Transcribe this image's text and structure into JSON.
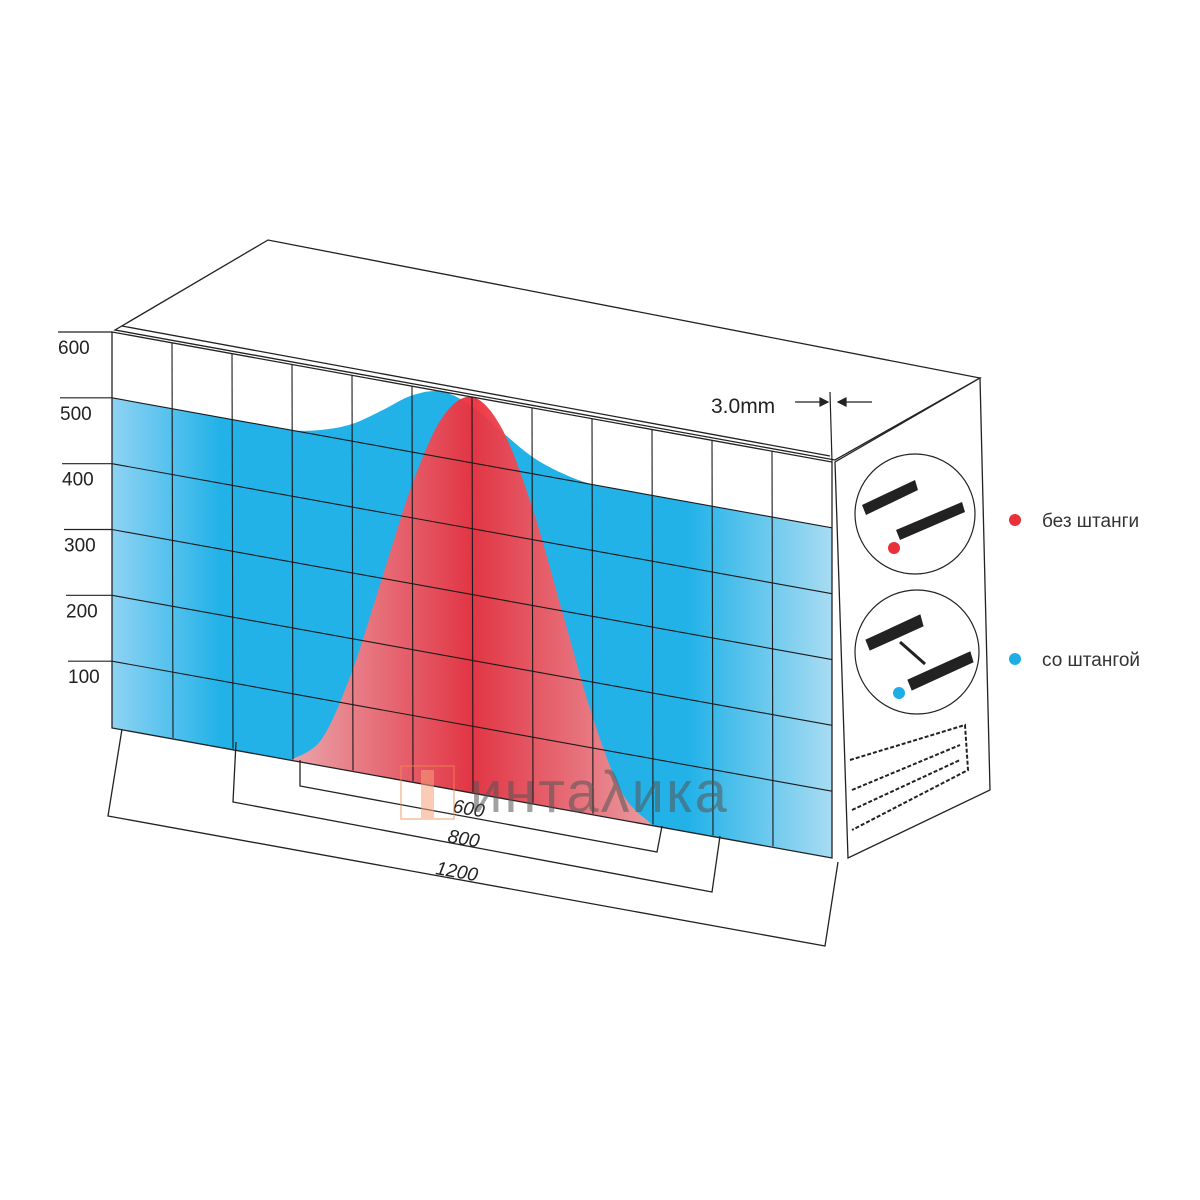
{
  "axis": {
    "levels": [
      "600",
      "500",
      "400",
      "300",
      "200",
      "100"
    ]
  },
  "dimensions": {
    "d600": "600",
    "d800": "800",
    "d1200": "1200",
    "thickness": "3.0mm"
  },
  "legend": [
    {
      "label": "без штанги",
      "color": "#e8303a"
    },
    {
      "label": "со штангой",
      "color": "#1eaee6"
    }
  ],
  "watermark": "интаλика",
  "chart_data": {
    "type": "area",
    "ylim": [
      0,
      600
    ],
    "xlim": [
      0,
      1200
    ],
    "series": [
      {
        "name": "со штангой",
        "color": "#1eaee6",
        "x": [
          0,
          50,
          100,
          150,
          200,
          250,
          300,
          350,
          400,
          450,
          500,
          550,
          600,
          650,
          700,
          750,
          800,
          850,
          900,
          950,
          1000,
          1050,
          1100,
          1150,
          1200
        ],
        "y": [
          500,
          500,
          500,
          500,
          500,
          500,
          500,
          509,
          526,
          555,
          586,
          600,
          586,
          555,
          526,
          509,
          500,
          500,
          500,
          500,
          500,
          500,
          500,
          500,
          500
        ]
      },
      {
        "name": "без штанги",
        "color": "#e8303a",
        "x": [
          300,
          350,
          400,
          450,
          500,
          550,
          600,
          650,
          700,
          750,
          800,
          850,
          900
        ],
        "y": [
          0,
          40,
          150,
          300,
          450,
          560,
          600,
          560,
          450,
          300,
          150,
          40,
          0
        ]
      }
    ]
  }
}
